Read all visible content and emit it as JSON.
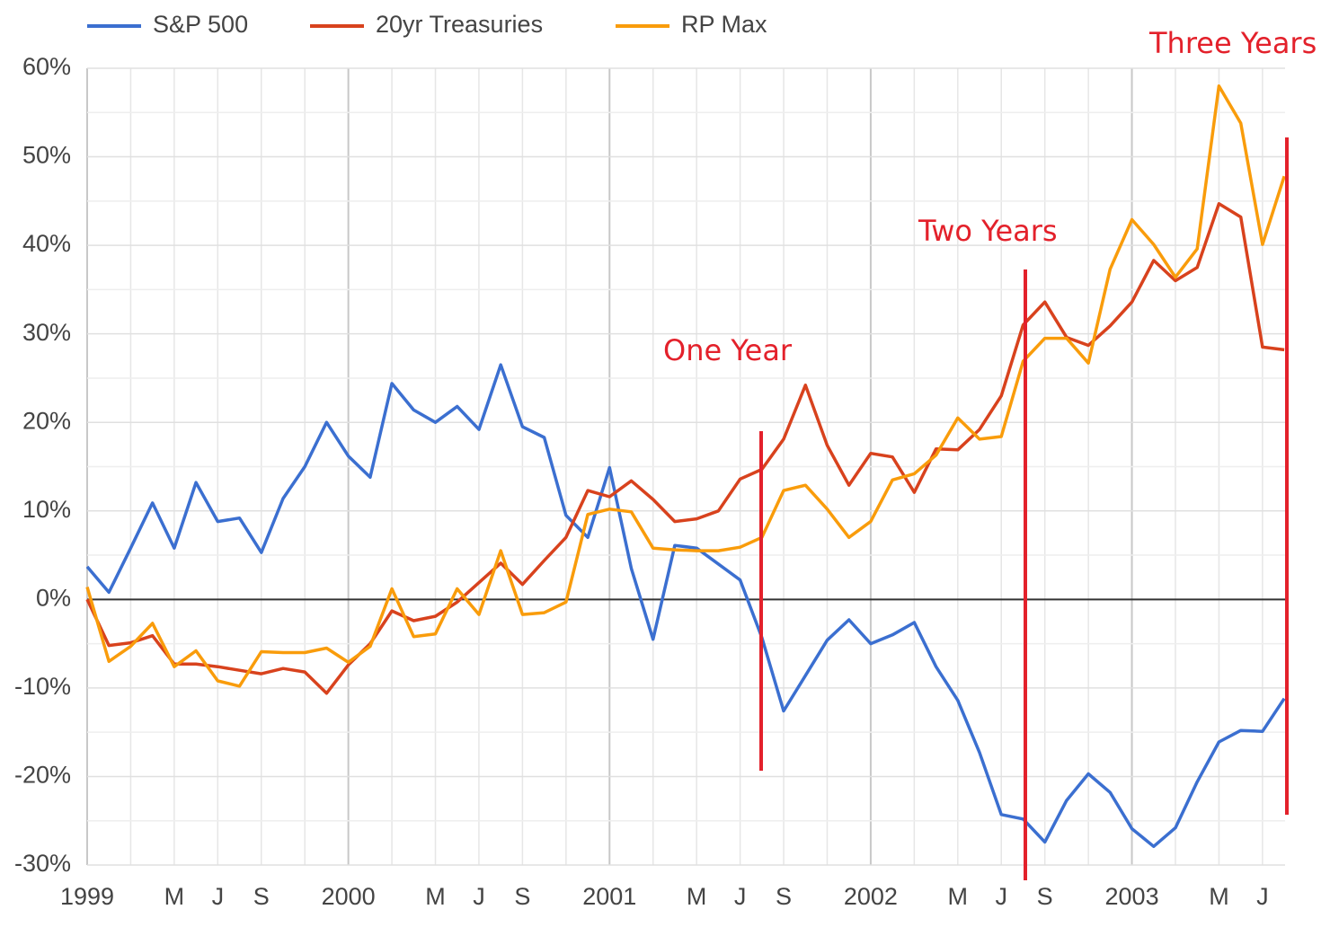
{
  "chart_data": {
    "type": "line",
    "categories": [
      "1999",
      null,
      null,
      null,
      "M",
      null,
      "J",
      null,
      "S",
      null,
      null,
      null,
      "2000",
      null,
      null,
      null,
      "M",
      null,
      "J",
      null,
      "S",
      null,
      null,
      null,
      "2001",
      null,
      null,
      null,
      "M",
      null,
      "J",
      null,
      "S",
      null,
      null,
      null,
      "2002",
      null,
      null,
      null,
      "M",
      null,
      "J",
      null,
      "S",
      null,
      null,
      null,
      "2003",
      null,
      null,
      null,
      "M",
      null,
      "J",
      null
    ],
    "series": [
      {
        "name": "S&P 500",
        "color": "#3b6fd0",
        "values": [
          3.7,
          0.8,
          5.8,
          10.9,
          5.8,
          13.2,
          8.8,
          9.2,
          5.3,
          11.4,
          15.0,
          20.0,
          16.2,
          13.8,
          24.4,
          21.4,
          20.0,
          21.8,
          19.2,
          26.5,
          19.5,
          18.3,
          9.5,
          7.0,
          14.9,
          3.5,
          -4.5,
          6.1,
          5.8,
          4.0,
          2.2,
          -4.3,
          -12.6,
          -8.6,
          -4.6,
          -2.3,
          -5.0,
          -4.0,
          -2.6,
          -7.6,
          -11.4,
          -17.3,
          -24.3,
          -24.8,
          -27.4,
          -22.7,
          -19.7,
          -21.8,
          -25.9,
          -27.9,
          -25.8,
          -20.6,
          -16.1,
          -14.8,
          -14.9,
          -11.2
        ]
      },
      {
        "name": "20yr Treasuries",
        "color": "#d8421d",
        "values": [
          0,
          -5.2,
          -4.9,
          -4.1,
          -7.3,
          -7.3,
          -7.6,
          -8.0,
          -8.4,
          -7.8,
          -8.2,
          -10.6,
          -7.4,
          -5.0,
          -1.3,
          -2.4,
          -1.9,
          -0.3,
          1.9,
          4.1,
          1.7,
          4.4,
          7.0,
          12.3,
          11.6,
          13.4,
          11.3,
          8.8,
          9.1,
          10.0,
          13.6,
          14.7,
          18.1,
          24.2,
          17.4,
          12.9,
          16.5,
          16.1,
          12.1,
          17.0,
          16.9,
          19.2,
          23.0,
          31.0,
          33.6,
          29.6,
          28.7,
          30.9,
          33.6,
          38.3,
          36.0,
          37.5,
          44.7,
          43.2,
          28.5,
          28.2
        ]
      },
      {
        "name": "RP Max",
        "color": "#f99c0b",
        "values": [
          1.4,
          -7.0,
          -5.3,
          -2.7,
          -7.6,
          -5.8,
          -9.2,
          -9.8,
          -5.9,
          -6.0,
          -6.0,
          -5.5,
          -7.1,
          -5.3,
          1.2,
          -4.2,
          -3.9,
          1.2,
          -1.7,
          5.5,
          -1.7,
          -1.5,
          -0.3,
          9.6,
          10.2,
          9.9,
          5.8,
          5.6,
          5.5,
          5.5,
          5.9,
          7.0,
          12.3,
          12.9,
          10.2,
          7.0,
          8.8,
          13.5,
          14.2,
          16.3,
          20.5,
          18.1,
          18.4,
          26.9,
          29.5,
          29.5,
          26.7,
          37.3,
          42.9,
          40.1,
          36.4,
          39.6,
          58.0,
          53.8,
          40.1,
          47.8
        ]
      }
    ],
    "ylim": [
      -30,
      60
    ],
    "yticks": [
      {
        "value": -30,
        "label": "-30%"
      },
      {
        "value": -20,
        "label": "-20%"
      },
      {
        "value": -10,
        "label": "-10%"
      },
      {
        "value": 0,
        "label": "0%"
      },
      {
        "value": 10,
        "label": "10%"
      },
      {
        "value": 20,
        "label": "20%"
      },
      {
        "value": 30,
        "label": "30%"
      },
      {
        "value": 40,
        "label": "40%"
      },
      {
        "value": 50,
        "label": "50%"
      },
      {
        "value": 60,
        "label": "60%"
      }
    ],
    "grid": true,
    "legend": "top-left",
    "annotations": [
      "One Year",
      "Two Years",
      "Three Years"
    ]
  }
}
